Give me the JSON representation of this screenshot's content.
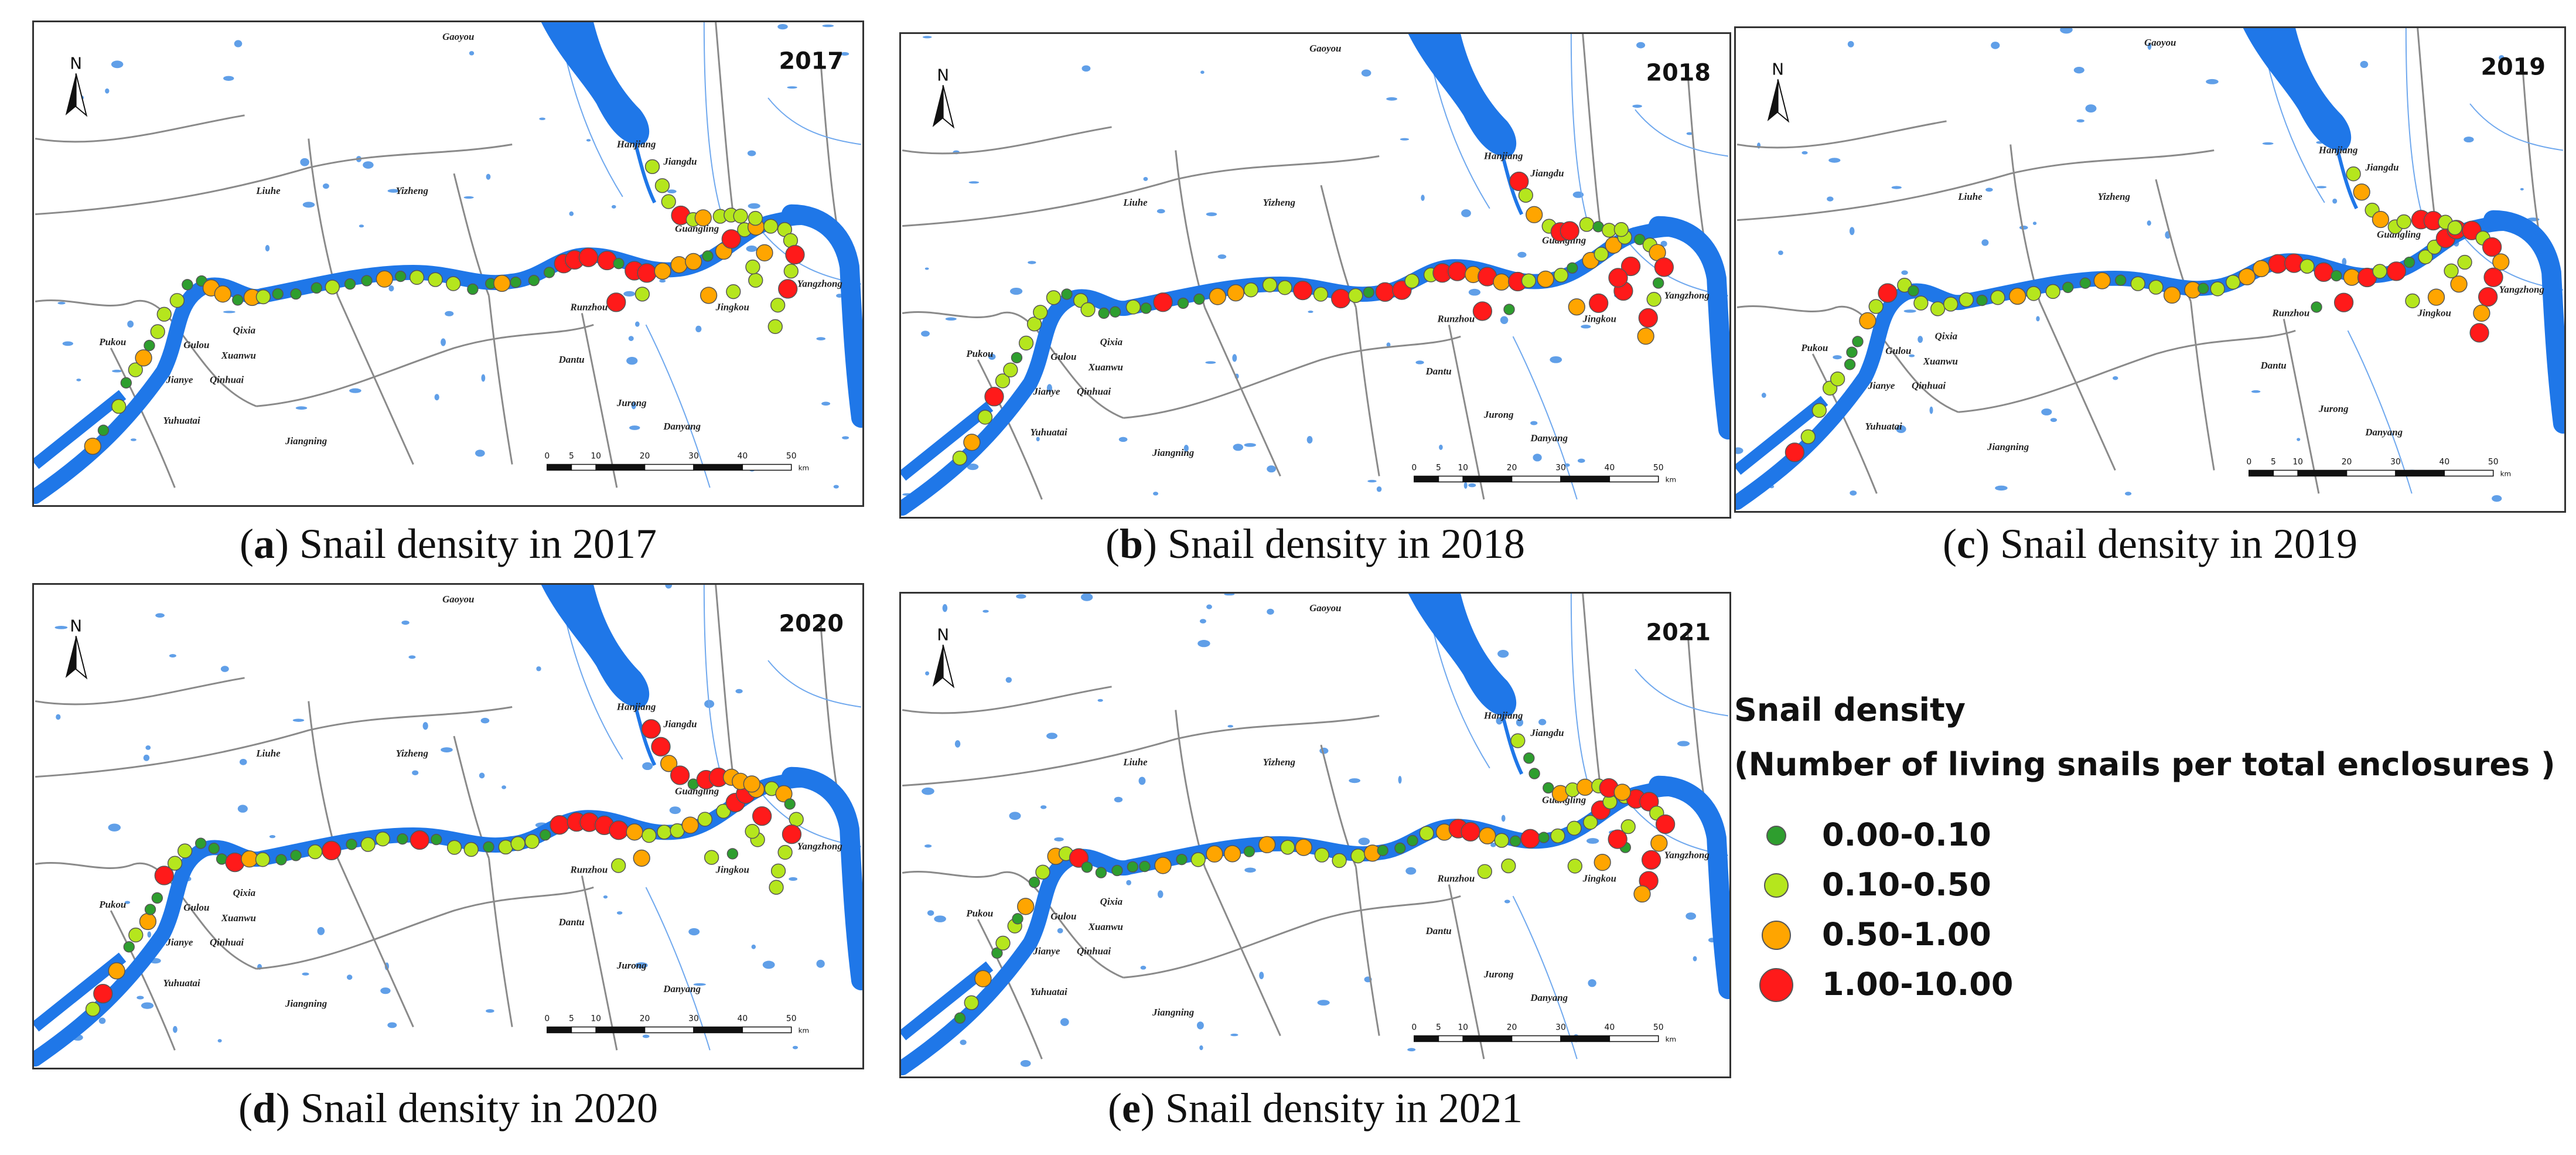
{
  "title": "Snail density",
  "subtitle": "(Number of living snails per total enclosures )",
  "north_label": "N",
  "scale": {
    "ticks": [
      "0",
      "5",
      "10",
      "20",
      "30",
      "40",
      "50"
    ],
    "unit": "km"
  },
  "place_names": [
    "Gaoyou",
    "Jiangdu",
    "Hanjiang",
    "Liuhe",
    "Yizheng",
    "Guangling",
    "Yangzhong",
    "Runzhou",
    "Jingkou",
    "Qixia",
    "Pukou",
    "Gulou",
    "Xuanwu",
    "Jianye",
    "Qinhuai",
    "Dantu",
    "Jurong",
    "Yuhuatai",
    "Jiangning",
    "Danyang"
  ],
  "legend": {
    "items": [
      {
        "label": "0.00-0.10",
        "color": "#2e9e2e",
        "size": "small"
      },
      {
        "label": "0.10-0.50",
        "color": "#b5e61d",
        "size": "medium"
      },
      {
        "label": "0.50-1.00",
        "color": "#ffa500",
        "size": "large"
      },
      {
        "label": "1.00-10.00",
        "color": "#ff1a1a",
        "size": "xlarge"
      }
    ]
  },
  "panels": [
    {
      "id": "a",
      "year": "2017",
      "caption_letter": "a",
      "caption_text": "Snail density in 2017"
    },
    {
      "id": "b",
      "year": "2018",
      "caption_letter": "b",
      "caption_text": "Snail density in 2018"
    },
    {
      "id": "c",
      "year": "2019",
      "caption_letter": "c",
      "caption_text": "Snail density in 2019"
    },
    {
      "id": "d",
      "year": "2020",
      "caption_letter": "d",
      "caption_text": "Snail density in 2020"
    },
    {
      "id": "e",
      "year": "2021",
      "caption_letter": "e",
      "caption_text": "Snail density in 2021"
    }
  ]
}
